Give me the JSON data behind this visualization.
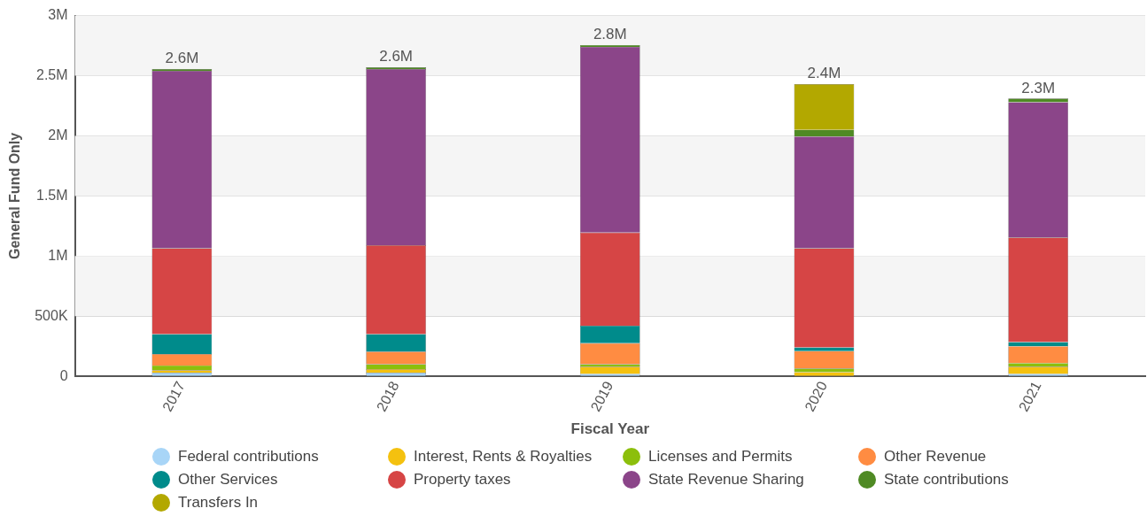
{
  "chart_data": {
    "type": "bar",
    "stacked": true,
    "xlabel": "Fiscal Year",
    "ylabel": "General Fund Only",
    "categories": [
      "2017",
      "2018",
      "2019",
      "2020",
      "2021"
    ],
    "series": [
      {
        "name": "Federal contributions",
        "color": "#a8d5f7",
        "values": [
          30000,
          30000,
          20000,
          0,
          20000
        ]
      },
      {
        "name": "Interest, Rents & Royalties",
        "color": "#f4c10f",
        "values": [
          20000,
          30000,
          60000,
          35000,
          60000
        ]
      },
      {
        "name": "Licenses and Permits",
        "color": "#8cbf0c",
        "values": [
          40000,
          40000,
          20000,
          30000,
          30000
        ]
      },
      {
        "name": "Other Revenue",
        "color": "#ff8c42",
        "values": [
          95000,
          105000,
          175000,
          145000,
          140000
        ]
      },
      {
        "name": "Other Services",
        "color": "#008b8b",
        "values": [
          165000,
          145000,
          145000,
          30000,
          35000
        ]
      },
      {
        "name": "Property taxes",
        "color": "#d64545",
        "values": [
          715000,
          740000,
          775000,
          825000,
          870000
        ]
      },
      {
        "name": "State Revenue Sharing",
        "color": "#8b4589",
        "values": [
          1475000,
          1465000,
          1545000,
          930000,
          1125000
        ]
      },
      {
        "name": "State contributions",
        "color": "#4f8a24",
        "values": [
          15000,
          15000,
          15000,
          55000,
          30000
        ]
      },
      {
        "name": "Transfers In",
        "color": "#b3a800",
        "values": [
          0,
          0,
          0,
          380000,
          0
        ]
      }
    ],
    "totals": [
      "2.6M",
      "2.6M",
      "2.8M",
      "2.4M",
      "2.3M"
    ],
    "ylim": [
      0,
      3000000
    ],
    "yticks": [
      0,
      {
        "value": 500000,
        "label": "500K"
      },
      {
        "value": 1000000,
        "label": "1M"
      },
      {
        "value": 1500000,
        "label": "1.5M"
      },
      {
        "value": 2000000,
        "label": "2M"
      },
      {
        "value": 2500000,
        "label": "2.5M"
      },
      {
        "value": 3000000,
        "label": "3M"
      }
    ],
    "grid": "y",
    "legend": "bottom"
  }
}
